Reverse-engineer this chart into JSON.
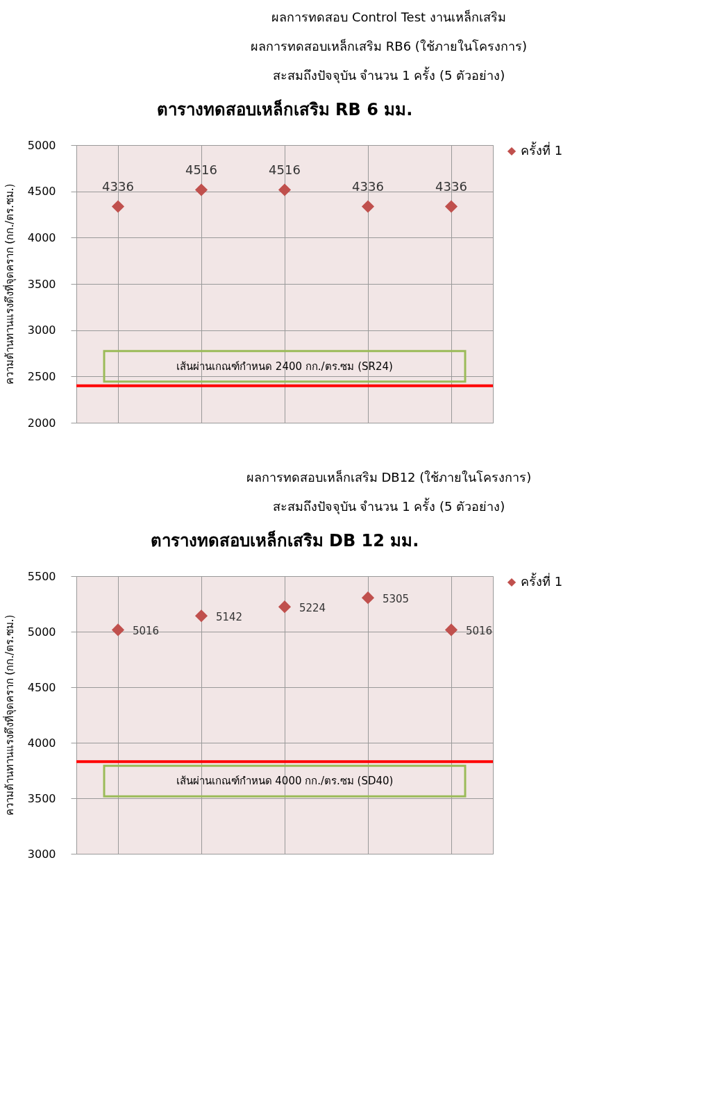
{
  "chart_data": [
    {
      "type": "scatter",
      "title": "ตารางทดสอบเหล็กเสริม RB 6 มม.",
      "annotations": [
        "ผลการทดสอบ Control Test งานเหล็กเสริม",
        "ผลการทดสอบเหล็กเสริม RB6 (ใช้ภายในโครงการ)",
        "สะสมถึงปัจจุบัน จำนวน 1 ครั้ง (5 ตัวอย่าง)"
      ],
      "ylabel": "ความต้านทานแรงดึงที่จุดคราก (กก./ตร.ซม.)",
      "categories": [
        null,
        null,
        null,
        null,
        null
      ],
      "series": [
        {
          "name": "ครั้งที่ 1",
          "color": "#c0504d",
          "values": [
            4336,
            4516,
            4516,
            4336,
            4336
          ]
        }
      ],
      "ylim": [
        2000,
        5000
      ],
      "yticks": [
        2000,
        2500,
        3000,
        3500,
        4000,
        4500,
        5000
      ],
      "grid": true,
      "legend": "right",
      "marker": "diamond",
      "data_labels": true,
      "tick_labels": "y",
      "ref_lines": [
        {
          "axis": "y",
          "value": 2400,
          "label": "เส้นผ่านเกณฑ์กำหนด 2400 กก./ตร.ซม (SR24)",
          "color": "#ff0000"
        }
      ]
    },
    {
      "type": "scatter",
      "title": "ตารางทดสอบเหล็กเสริม DB 12 มม.",
      "annotations": [
        "ผลการทดสอบเหล็กเสริม DB12 (ใช้ภายในโครงการ)",
        "สะสมถึงปัจจุบัน จำนวน 1 ครั้ง (5 ตัวอย่าง)"
      ],
      "ylabel": "ความต้านทานแรงดึงที่จุดคราก (กก./ตร.ซม.)",
      "categories": [
        null,
        null,
        null,
        null,
        null
      ],
      "series": [
        {
          "name": "ครั้งที่ 1",
          "color": "#c0504d",
          "values": [
            5016,
            5142,
            5224,
            5305,
            5016
          ]
        }
      ],
      "ylim": [
        3000,
        5500
      ],
      "yticks": [
        3000,
        3500,
        4000,
        4500,
        5000,
        5500
      ],
      "grid": true,
      "legend": "right",
      "marker": "diamond",
      "data_labels": true,
      "tick_labels": "y",
      "ref_lines": [
        {
          "axis": "y",
          "value": 3830,
          "label": "เส้นผ่านเกณฑ์กำหนด 4000 กก./ตร.ซม (SD40)",
          "color": "#ff0000"
        }
      ]
    }
  ]
}
